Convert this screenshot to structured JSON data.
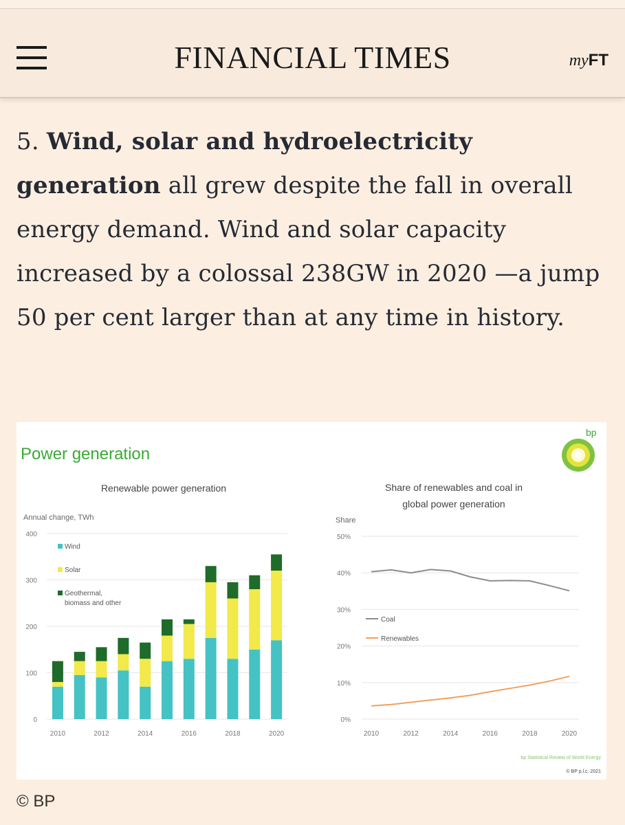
{
  "header": {
    "menu_icon": "hamburger-menu-icon",
    "brand": "FINANCIAL TIMES",
    "myft_my": "my",
    "myft_ft": "FT"
  },
  "article": {
    "number": "5.",
    "bold_text": "Wind, solar and hydroelectricity generation",
    "body_text": " all grew despite the fall in overall energy demand. Wind and solar capacity increased by a colossal 238GW in 2020 —a jump 50 per cent larger than at any time in history."
  },
  "figure": {
    "heading": "Power generation",
    "logo_text": "bp",
    "footer_source": "bp Statistical Review of World Energy",
    "footer_copyright": "© BP p.l.c. 2021",
    "caption": "© BP"
  },
  "colors": {
    "page_bg": "#fcefe2",
    "header_bg": "#f8ebdd",
    "bp_green": "#3aaa35",
    "wind": "#45c2c4",
    "solar": "#f2e94a",
    "geothermal": "#1f6b2a",
    "coal": "#8c8c8c",
    "renewables": "#f0a060"
  },
  "chart_data": [
    {
      "type": "bar",
      "stacked": true,
      "title": "Renewable power generation",
      "ylabel": "Annual change, TWh",
      "xlabel": "",
      "ylim": [
        0,
        400
      ],
      "yticks": [
        "0",
        "100",
        "200",
        "300",
        "400"
      ],
      "categories": [
        "2010",
        "2011",
        "2012",
        "2013",
        "2014",
        "2015",
        "2016",
        "2017",
        "2018",
        "2019",
        "2020"
      ],
      "xtick_labels": [
        "2010",
        "2012",
        "2014",
        "2016",
        "2018",
        "2020"
      ],
      "legend_position": "top-left",
      "series": [
        {
          "name": "Wind",
          "values": [
            70,
            95,
            90,
            105,
            70,
            125,
            130,
            175,
            130,
            150,
            170
          ]
        },
        {
          "name": "Solar",
          "values": [
            10,
            30,
            35,
            35,
            60,
            55,
            75,
            120,
            130,
            130,
            150
          ]
        },
        {
          "name": "Geothermal, biomass and other",
          "values": [
            45,
            20,
            30,
            35,
            35,
            35,
            10,
            35,
            35,
            30,
            35
          ]
        }
      ]
    },
    {
      "type": "line",
      "title": "Share of renewables and coal in global power generation",
      "ylabel": "Share",
      "xlabel": "",
      "ylim": [
        0,
        50
      ],
      "yticks": [
        "0%",
        "10%",
        "20%",
        "30%",
        "40%",
        "50%"
      ],
      "x": [
        2010,
        2011,
        2012,
        2013,
        2014,
        2015,
        2016,
        2017,
        2018,
        2019,
        2020
      ],
      "xtick_labels": [
        "2010",
        "2012",
        "2014",
        "2016",
        "2018",
        "2020"
      ],
      "legend_position": "middle-left",
      "series": [
        {
          "name": "Coal",
          "values": [
            40.3,
            40.8,
            40.0,
            40.9,
            40.5,
            38.9,
            37.8,
            37.9,
            37.8,
            36.5,
            35.1
          ]
        },
        {
          "name": "Renewables",
          "values": [
            3.6,
            4.0,
            4.6,
            5.2,
            5.8,
            6.5,
            7.5,
            8.4,
            9.3,
            10.4,
            11.7
          ]
        }
      ]
    }
  ]
}
